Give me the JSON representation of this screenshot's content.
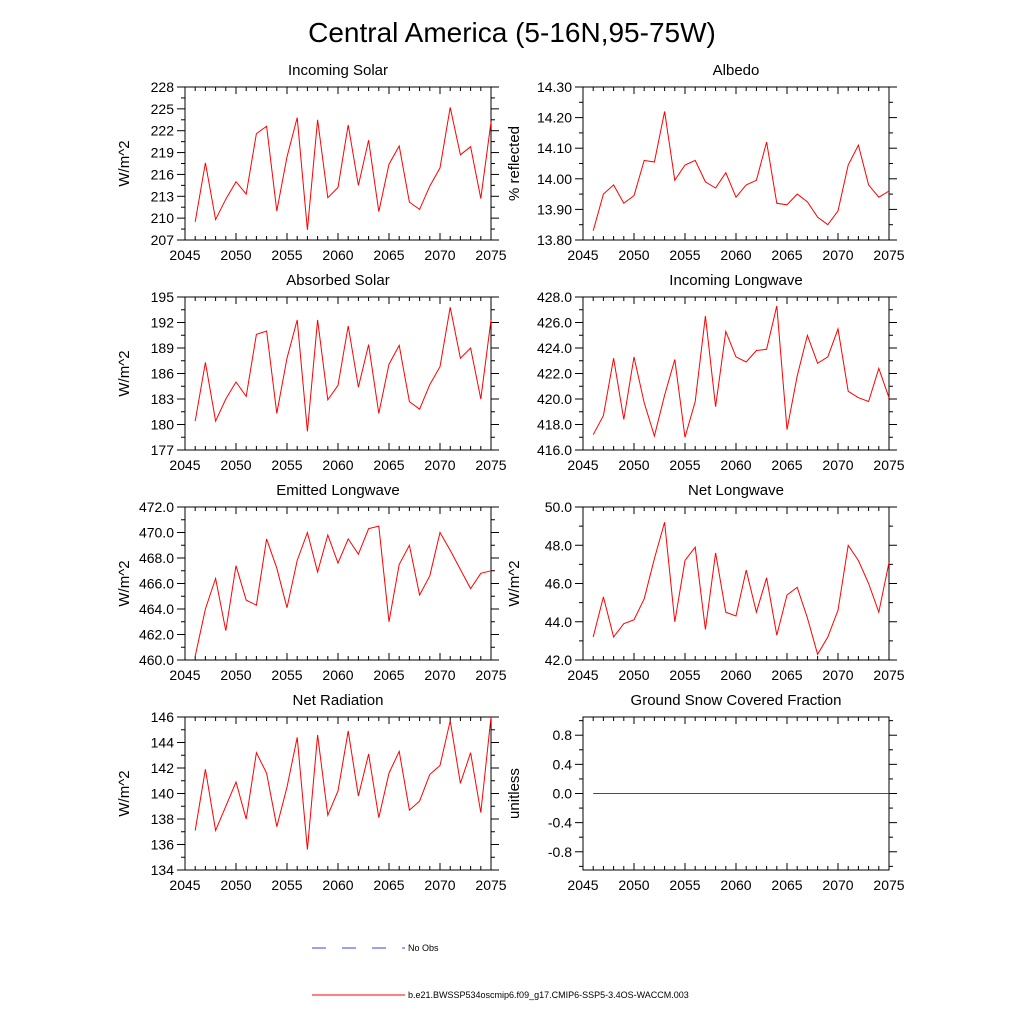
{
  "figure": {
    "title": "Central America (5-16N,95-75W)"
  },
  "colors": {
    "series": "#ff0000",
    "obs": "#3b3bff",
    "axis": "#000000"
  },
  "legend": {
    "items": [
      {
        "label": "No Obs",
        "style": "dashed",
        "color": "#3b3bff"
      },
      {
        "label": "b.e21.BWSSP534oscmip6.f09_g17.CMIP6-SSP5-3.4OS-WACCM.003",
        "style": "solid",
        "color": "#ff0000"
      }
    ]
  },
  "chart_data": [
    {
      "type": "line",
      "title": "Incoming Solar",
      "ylabel": "W/m^2",
      "xlim": [
        2045,
        2075
      ],
      "ylim": [
        207,
        228
      ],
      "xticks": [
        2045,
        2050,
        2055,
        2060,
        2065,
        2070,
        2075
      ],
      "yticks": [
        207,
        210,
        213,
        216,
        219,
        222,
        225,
        228
      ],
      "ytick_labels": [
        "207",
        "210",
        "213",
        "216",
        "219",
        "222",
        "225",
        "228"
      ],
      "x": [
        2046,
        2047,
        2048,
        2049,
        2050,
        2051,
        2052,
        2053,
        2054,
        2055,
        2056,
        2057,
        2058,
        2059,
        2060,
        2061,
        2062,
        2063,
        2064,
        2065,
        2066,
        2067,
        2068,
        2069,
        2070,
        2071,
        2072,
        2073,
        2074,
        2075
      ],
      "values": [
        209.5,
        217.6,
        209.8,
        212.6,
        215.0,
        213.3,
        221.6,
        222.6,
        211.0,
        218.4,
        223.8,
        208.4,
        223.5,
        212.8,
        214.2,
        222.8,
        214.5,
        220.7,
        210.9,
        217.4,
        219.9,
        212.2,
        211.2,
        214.4,
        216.9,
        225.2,
        218.7,
        219.8,
        212.7,
        223.2
      ]
    },
    {
      "type": "line",
      "title": "Albedo",
      "ylabel": "% reflected",
      "xlim": [
        2045,
        2075
      ],
      "ylim": [
        13.8,
        14.3
      ],
      "xticks": [
        2045,
        2050,
        2055,
        2060,
        2065,
        2070,
        2075
      ],
      "yticks": [
        13.8,
        13.9,
        14.0,
        14.1,
        14.2,
        14.3
      ],
      "ytick_labels": [
        "13.80",
        "13.90",
        "14.00",
        "14.10",
        "14.20",
        "14.30"
      ],
      "x": [
        2046,
        2047,
        2048,
        2049,
        2050,
        2051,
        2052,
        2053,
        2054,
        2055,
        2056,
        2057,
        2058,
        2059,
        2060,
        2061,
        2062,
        2063,
        2064,
        2065,
        2066,
        2067,
        2068,
        2069,
        2070,
        2071,
        2072,
        2073,
        2074,
        2075
      ],
      "values": [
        13.83,
        13.95,
        13.98,
        13.92,
        13.945,
        14.06,
        14.055,
        14.22,
        13.995,
        14.045,
        14.06,
        13.99,
        13.97,
        14.02,
        13.94,
        13.98,
        13.995,
        14.12,
        13.92,
        13.915,
        13.95,
        13.925,
        13.875,
        13.85,
        13.895,
        14.045,
        14.11,
        13.98,
        13.94,
        13.96
      ]
    },
    {
      "type": "line",
      "title": "Absorbed Solar",
      "ylabel": "W/m^2",
      "xlim": [
        2045,
        2075
      ],
      "ylim": [
        177,
        195
      ],
      "xticks": [
        2045,
        2050,
        2055,
        2060,
        2065,
        2070,
        2075
      ],
      "yticks": [
        177,
        180,
        183,
        186,
        189,
        192,
        195
      ],
      "ytick_labels": [
        "177",
        "180",
        "183",
        "186",
        "189",
        "192",
        "195"
      ],
      "x": [
        2046,
        2047,
        2048,
        2049,
        2050,
        2051,
        2052,
        2053,
        2054,
        2055,
        2056,
        2057,
        2058,
        2059,
        2060,
        2061,
        2062,
        2063,
        2064,
        2065,
        2066,
        2067,
        2068,
        2069,
        2070,
        2071,
        2072,
        2073,
        2074,
        2075
      ],
      "values": [
        180.4,
        187.3,
        180.4,
        183.0,
        185.0,
        183.3,
        190.6,
        191.0,
        181.3,
        187.8,
        192.3,
        179.2,
        192.3,
        182.9,
        184.6,
        191.6,
        184.4,
        189.4,
        181.3,
        187.1,
        189.3,
        182.7,
        181.8,
        184.7,
        186.8,
        193.8,
        187.8,
        189.0,
        183.0,
        192.3
      ]
    },
    {
      "type": "line",
      "title": "Incoming Longwave",
      "ylabel": "",
      "xlim": [
        2045,
        2075
      ],
      "ylim": [
        416,
        428
      ],
      "xticks": [
        2045,
        2050,
        2055,
        2060,
        2065,
        2070,
        2075
      ],
      "yticks": [
        416,
        418,
        420,
        422,
        424,
        426,
        428
      ],
      "ytick_labels": [
        "416.0",
        "418.0",
        "420.0",
        "422.0",
        "424.0",
        "426.0",
        "428.0"
      ],
      "x": [
        2046,
        2047,
        2048,
        2049,
        2050,
        2051,
        2052,
        2053,
        2054,
        2055,
        2056,
        2057,
        2058,
        2059,
        2060,
        2061,
        2062,
        2063,
        2064,
        2065,
        2066,
        2067,
        2068,
        2069,
        2070,
        2071,
        2072,
        2073,
        2074,
        2075
      ],
      "values": [
        417.2,
        418.7,
        423.2,
        418.4,
        423.3,
        419.7,
        417.1,
        420.3,
        423.1,
        417.0,
        419.8,
        426.5,
        419.4,
        425.3,
        423.3,
        422.9,
        423.8,
        423.9,
        427.3,
        417.6,
        421.8,
        425.0,
        422.8,
        423.3,
        425.5,
        420.6,
        420.1,
        419.8,
        422.4,
        420.1
      ]
    },
    {
      "type": "line",
      "title": "Emitted Longwave",
      "ylabel": "W/m^2",
      "xlim": [
        2045,
        2075
      ],
      "ylim": [
        460,
        472
      ],
      "xticks": [
        2045,
        2050,
        2055,
        2060,
        2065,
        2070,
        2075
      ],
      "yticks": [
        460,
        462,
        464,
        466,
        468,
        470,
        472
      ],
      "ytick_labels": [
        "460.0",
        "462.0",
        "464.0",
        "466.0",
        "468.0",
        "470.0",
        "472.0"
      ],
      "x": [
        2046,
        2047,
        2048,
        2049,
        2050,
        2051,
        2052,
        2053,
        2054,
        2055,
        2056,
        2057,
        2058,
        2059,
        2060,
        2061,
        2062,
        2063,
        2064,
        2065,
        2066,
        2067,
        2068,
        2069,
        2070,
        2071,
        2072,
        2073,
        2074,
        2075
      ],
      "values": [
        460.3,
        464.0,
        466.4,
        462.3,
        467.4,
        464.7,
        464.3,
        469.5,
        467.2,
        464.1,
        467.8,
        470.0,
        466.9,
        469.8,
        467.6,
        469.5,
        468.3,
        470.3,
        470.5,
        463.0,
        467.5,
        469.0,
        465.1,
        466.6,
        470.0,
        468.6,
        467.1,
        465.6,
        466.8,
        467.0
      ]
    },
    {
      "type": "line",
      "title": "Net Longwave",
      "ylabel": "W/m^2",
      "xlim": [
        2045,
        2075
      ],
      "ylim": [
        42,
        50
      ],
      "xticks": [
        2045,
        2050,
        2055,
        2060,
        2065,
        2070,
        2075
      ],
      "yticks": [
        42,
        44,
        46,
        48,
        50
      ],
      "ytick_labels": [
        "42.0",
        "44.0",
        "46.0",
        "48.0",
        "50.0"
      ],
      "x": [
        2046,
        2047,
        2048,
        2049,
        2050,
        2051,
        2052,
        2053,
        2054,
        2055,
        2056,
        2057,
        2058,
        2059,
        2060,
        2061,
        2062,
        2063,
        2064,
        2065,
        2066,
        2067,
        2068,
        2069,
        2070,
        2071,
        2072,
        2073,
        2074,
        2075
      ],
      "values": [
        43.2,
        45.3,
        43.2,
        43.9,
        44.1,
        45.2,
        47.3,
        49.2,
        44.0,
        47.2,
        47.9,
        43.6,
        47.6,
        44.5,
        44.3,
        46.7,
        44.5,
        46.3,
        43.3,
        45.4,
        45.8,
        44.2,
        42.3,
        43.2,
        44.6,
        48.0,
        47.2,
        46.0,
        44.5,
        47.1
      ]
    },
    {
      "type": "line",
      "title": "Net Radiation",
      "ylabel": "W/m^2",
      "xlim": [
        2045,
        2075
      ],
      "ylim": [
        134,
        146
      ],
      "xticks": [
        2045,
        2050,
        2055,
        2060,
        2065,
        2070,
        2075
      ],
      "yticks": [
        134,
        136,
        138,
        140,
        142,
        144,
        146
      ],
      "ytick_labels": [
        "134",
        "136",
        "138",
        "140",
        "142",
        "144",
        "146"
      ],
      "x": [
        2046,
        2047,
        2048,
        2049,
        2050,
        2051,
        2052,
        2053,
        2054,
        2055,
        2056,
        2057,
        2058,
        2059,
        2060,
        2061,
        2062,
        2063,
        2064,
        2065,
        2066,
        2067,
        2068,
        2069,
        2070,
        2071,
        2072,
        2073,
        2074,
        2075
      ],
      "values": [
        137.1,
        141.9,
        137.1,
        139.0,
        140.9,
        138.0,
        143.2,
        141.6,
        137.4,
        140.5,
        144.4,
        135.6,
        144.6,
        138.3,
        140.2,
        144.9,
        139.8,
        143.1,
        138.1,
        141.6,
        143.3,
        138.7,
        139.4,
        141.5,
        142.2,
        145.7,
        140.8,
        143.2,
        138.5,
        146.0
      ]
    },
    {
      "type": "line",
      "title": "Ground Snow Covered Fraction",
      "ylabel": "unitless",
      "xlim": [
        2045,
        2075
      ],
      "ylim": [
        -1.05,
        1.05
      ],
      "xticks": [
        2045,
        2050,
        2055,
        2060,
        2065,
        2070,
        2075
      ],
      "yticks": [
        -0.8,
        -0.4,
        0.0,
        0.4,
        0.8
      ],
      "ytick_labels": [
        "-0.8",
        "-0.4",
        "0.0",
        "0.4",
        "0.8"
      ],
      "x": [
        2046,
        2047,
        2048,
        2049,
        2050,
        2051,
        2052,
        2053,
        2054,
        2055,
        2056,
        2057,
        2058,
        2059,
        2060,
        2061,
        2062,
        2063,
        2064,
        2065,
        2066,
        2067,
        2068,
        2069,
        2070,
        2071,
        2072,
        2073,
        2074,
        2075
      ],
      "values": [
        0,
        0,
        0,
        0,
        0,
        0,
        0,
        0,
        0,
        0,
        0,
        0,
        0,
        0,
        0,
        0,
        0,
        0,
        0,
        0,
        0,
        0,
        0,
        0,
        0,
        0,
        0,
        0,
        0,
        0
      ]
    }
  ]
}
